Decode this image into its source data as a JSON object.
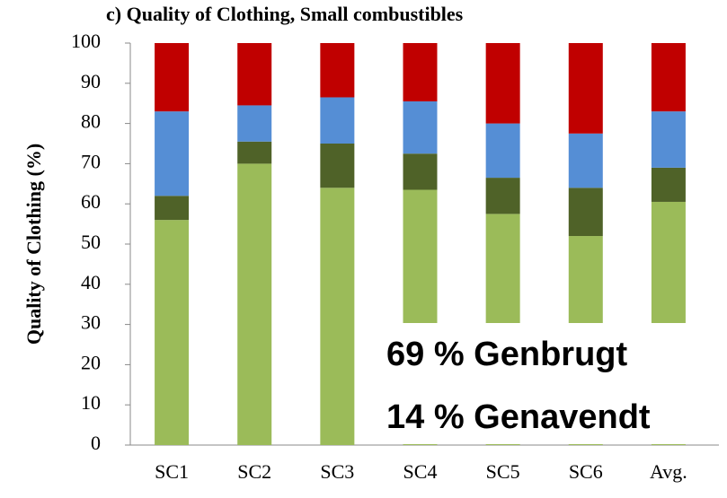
{
  "chart_data": {
    "type": "stacked_bar",
    "title": "c) Quality of Clothing, Small combustibles",
    "y_label": "Quality of Clothing (%)",
    "categories": [
      "SC1",
      "SC2",
      "SC3",
      "SC4",
      "SC5",
      "SC6",
      "Avg."
    ],
    "series": [
      {
        "color": "#9bbb59",
        "values": [
          56,
          70,
          64,
          63.5,
          57.5,
          52,
          60.5
        ]
      },
      {
        "color": "#4f6228",
        "values": [
          6,
          5.5,
          11,
          9,
          9,
          12,
          8.5
        ]
      },
      {
        "color": "#558ed5",
        "values": [
          21,
          9,
          11.5,
          13,
          13.5,
          13.5,
          14
        ]
      },
      {
        "color": "#c00000",
        "values": [
          17,
          15.5,
          13.5,
          14.5,
          20,
          22.5,
          17
        ]
      }
    ],
    "ylim": [
      0,
      100
    ],
    "yticks": [
      0,
      10,
      20,
      30,
      40,
      50,
      60,
      70,
      80,
      90,
      100
    ],
    "grid": false,
    "annotations": [
      "69 % Genbrugt",
      "14 % Genavendt"
    ]
  }
}
